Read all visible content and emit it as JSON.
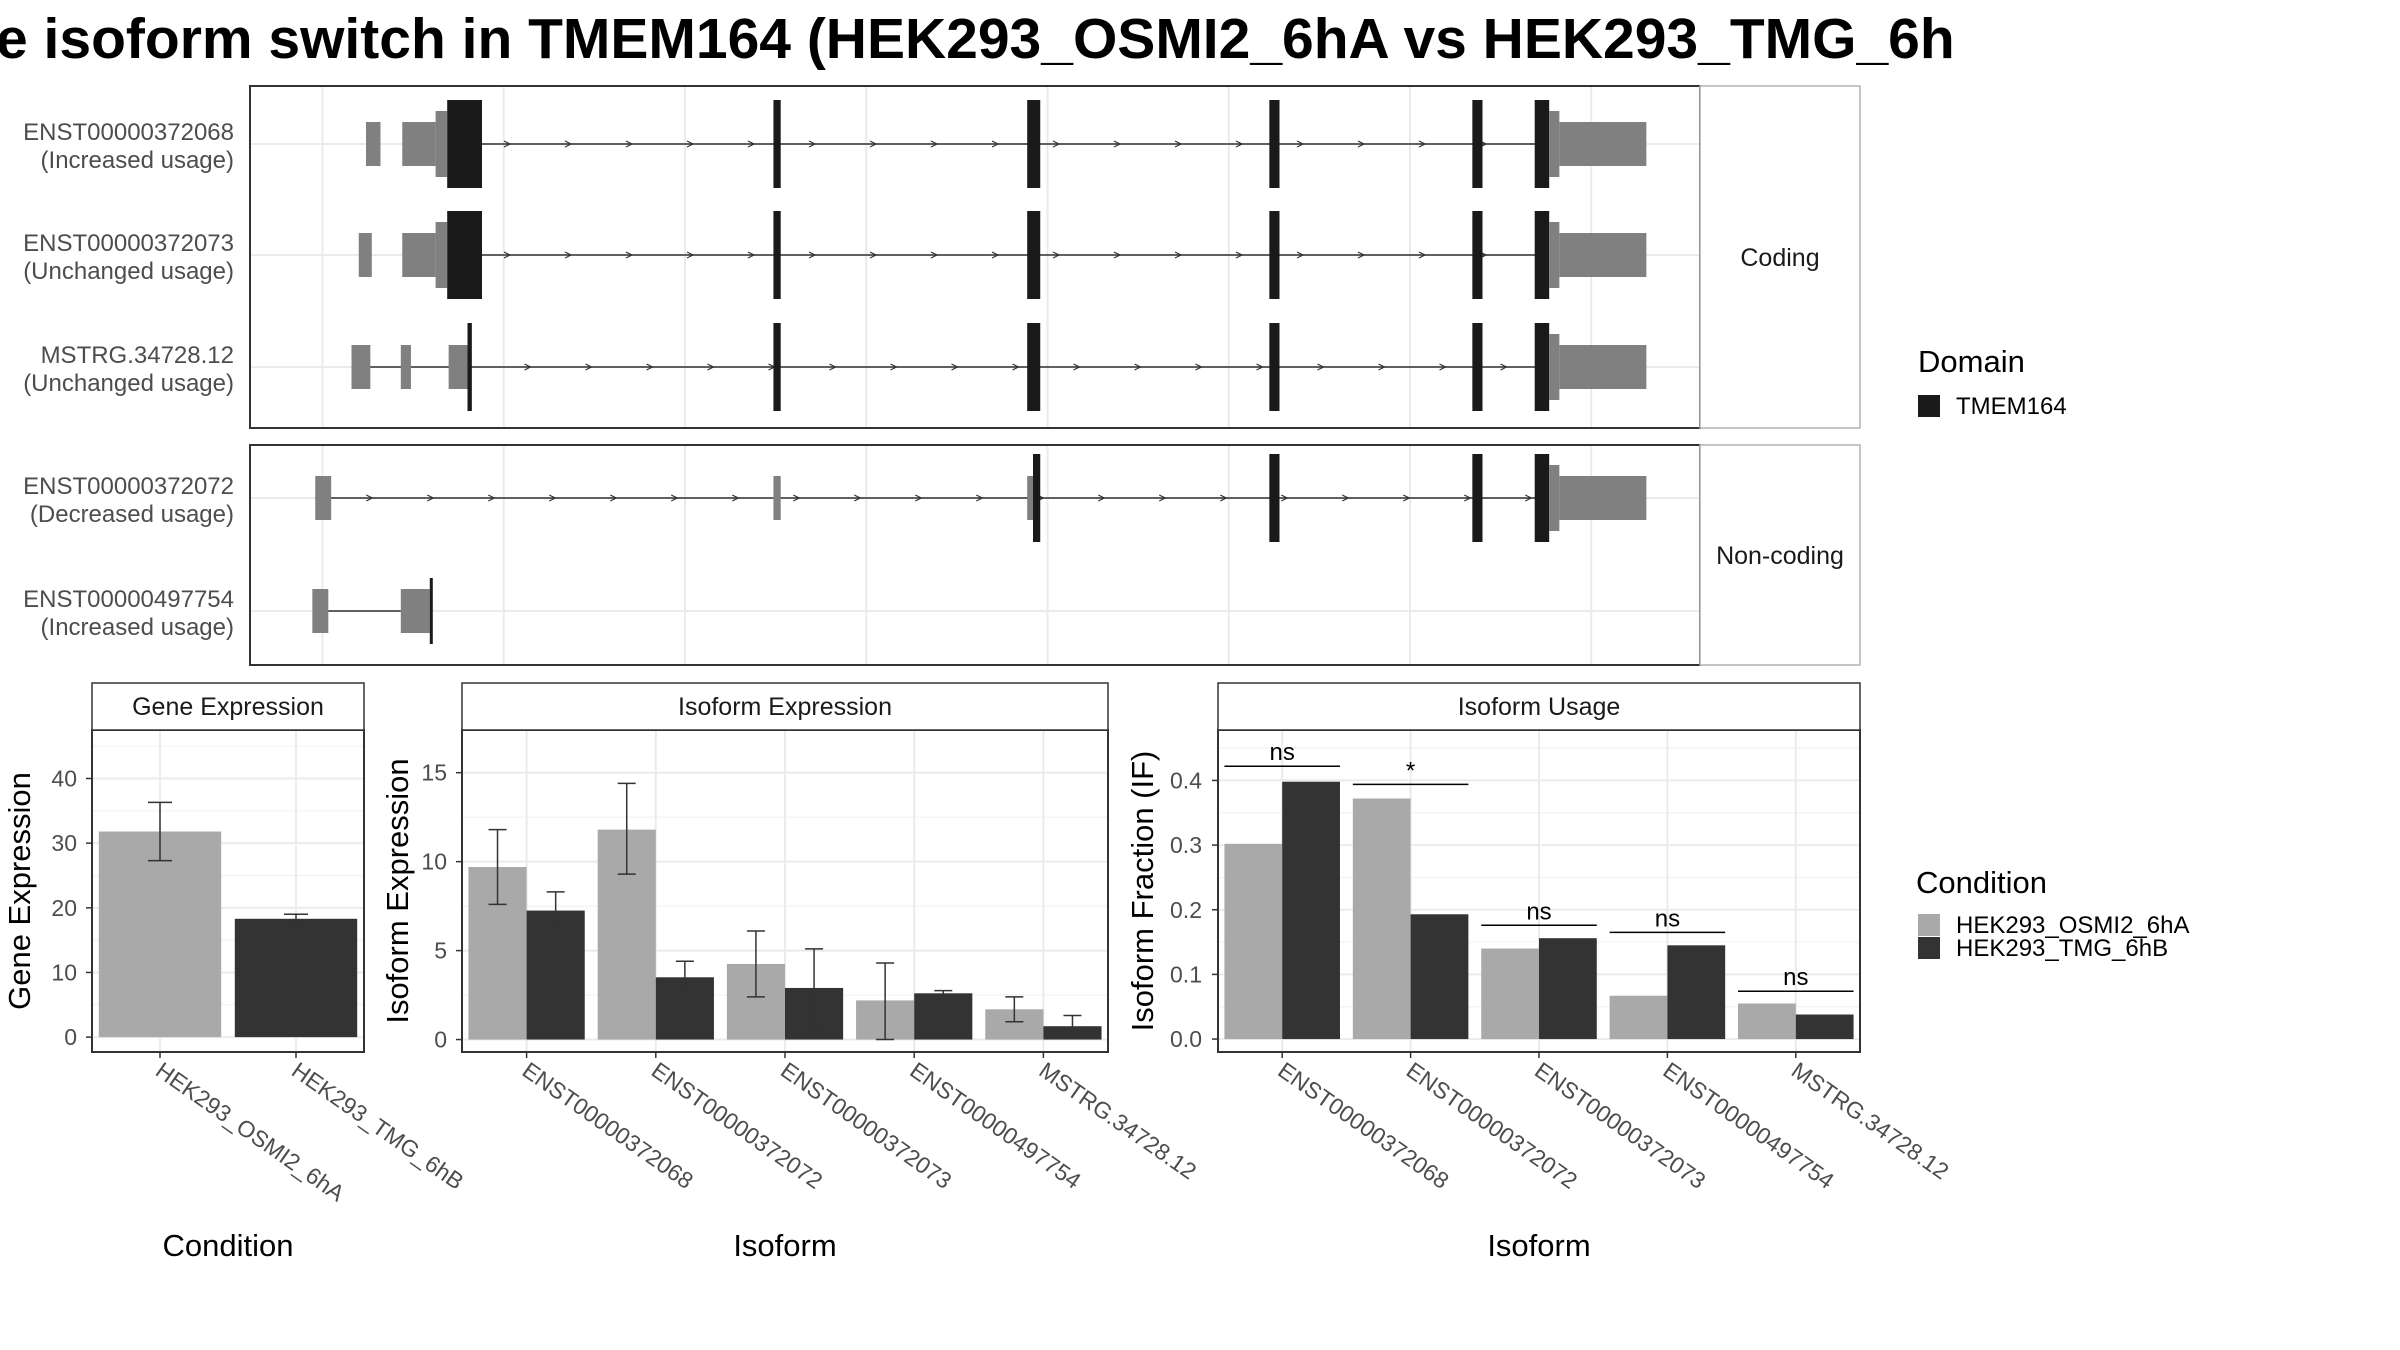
{
  "title": "e isoform switch in TMEM164 (HEK293_OSMI2_6hA vs HEK293_TMG_6h",
  "colors": {
    "cond_a": "#a9a9a9",
    "cond_b": "#333333",
    "utr": "#808080",
    "domain": "#1a1a1a",
    "grid": "#ebebeb",
    "panel_border": "#333333",
    "strip_bg": "#ffffff"
  },
  "structure": {
    "coords": "genomic position in plot units (0-100), left to right",
    "groups": [
      {
        "label": "Coding",
        "transcripts": [
          {
            "name": "ENST00000372068",
            "status": "(Increased usage)",
            "intron": [
              14.0,
              89.0
            ],
            "exons": [
              {
                "s": 8.0,
                "e": 9.0,
                "type": "utr"
              },
              {
                "s": 10.5,
                "e": 12.8,
                "type": "utr"
              },
              {
                "s": 12.8,
                "e": 13.6,
                "type": "utr_thin"
              },
              {
                "s": 13.6,
                "e": 16.0,
                "type": "cds"
              },
              {
                "s": 36.1,
                "e": 36.6,
                "type": "cds"
              },
              {
                "s": 53.6,
                "e": 54.5,
                "type": "cds"
              },
              {
                "s": 70.3,
                "e": 71.0,
                "type": "cds"
              },
              {
                "s": 84.3,
                "e": 85.0,
                "type": "cds"
              },
              {
                "s": 88.6,
                "e": 89.6,
                "type": "cds"
              },
              {
                "s": 89.6,
                "e": 90.3,
                "type": "utr_thin"
              },
              {
                "s": 90.3,
                "e": 96.3,
                "type": "utr"
              }
            ]
          },
          {
            "name": "ENST00000372073",
            "status": "(Unchanged usage)",
            "intron": [
              14.0,
              89.0
            ],
            "exons": [
              {
                "s": 7.5,
                "e": 8.4,
                "type": "utr"
              },
              {
                "s": 10.5,
                "e": 12.8,
                "type": "utr"
              },
              {
                "s": 12.8,
                "e": 13.6,
                "type": "utr_thin"
              },
              {
                "s": 13.6,
                "e": 16.0,
                "type": "cds"
              },
              {
                "s": 36.1,
                "e": 36.6,
                "type": "cds"
              },
              {
                "s": 53.6,
                "e": 54.5,
                "type": "cds"
              },
              {
                "s": 70.3,
                "e": 71.0,
                "type": "cds"
              },
              {
                "s": 84.3,
                "e": 85.0,
                "type": "cds"
              },
              {
                "s": 88.6,
                "e": 89.6,
                "type": "cds"
              },
              {
                "s": 89.6,
                "e": 90.3,
                "type": "utr_thin"
              },
              {
                "s": 90.3,
                "e": 96.3,
                "type": "utr"
              }
            ]
          },
          {
            "name": "MSTRG.34728.12",
            "status": "(Unchanged usage)",
            "intron": [
              7.0,
              89.0
            ],
            "exons": [
              {
                "s": 7.0,
                "e": 8.3,
                "type": "utr"
              },
              {
                "s": 10.4,
                "e": 11.1,
                "type": "utr"
              },
              {
                "s": 13.7,
                "e": 15.0,
                "type": "utr"
              },
              {
                "s": 15.0,
                "e": 15.3,
                "type": "cds"
              },
              {
                "s": 36.1,
                "e": 36.6,
                "type": "cds"
              },
              {
                "s": 53.6,
                "e": 54.5,
                "type": "cds"
              },
              {
                "s": 70.3,
                "e": 71.0,
                "type": "cds"
              },
              {
                "s": 84.3,
                "e": 85.0,
                "type": "cds"
              },
              {
                "s": 88.6,
                "e": 89.6,
                "type": "cds"
              },
              {
                "s": 89.6,
                "e": 90.3,
                "type": "utr_thin"
              },
              {
                "s": 90.3,
                "e": 96.3,
                "type": "utr"
              }
            ]
          }
        ]
      },
      {
        "label": "Non-coding",
        "transcripts": [
          {
            "name": "ENST00000372072",
            "status": "(Decreased usage)",
            "intron": [
              4.5,
              89.0
            ],
            "exons": [
              {
                "s": 4.5,
                "e": 5.6,
                "type": "utr"
              },
              {
                "s": 36.1,
                "e": 36.6,
                "type": "utr"
              },
              {
                "s": 53.6,
                "e": 54.0,
                "type": "utr"
              },
              {
                "s": 54.0,
                "e": 54.5,
                "type": "cds"
              },
              {
                "s": 70.3,
                "e": 71.0,
                "type": "cds"
              },
              {
                "s": 84.3,
                "e": 85.0,
                "type": "cds"
              },
              {
                "s": 88.6,
                "e": 89.6,
                "type": "cds"
              },
              {
                "s": 89.6,
                "e": 90.3,
                "type": "utr_thin"
              },
              {
                "s": 90.3,
                "e": 96.3,
                "type": "utr"
              }
            ]
          },
          {
            "name": "ENST00000497754",
            "status": "(Increased usage)",
            "intron": [
              5.3,
              10.4
            ],
            "exons": [
              {
                "s": 4.3,
                "e": 5.4,
                "type": "utr"
              },
              {
                "s": 10.4,
                "e": 12.4,
                "type": "utr"
              },
              {
                "s": 12.4,
                "e": 12.6,
                "type": "cds_tall"
              }
            ]
          }
        ]
      }
    ]
  },
  "legend_domain": {
    "title": "Domain",
    "items": [
      {
        "label": "TMEM164",
        "color": "#1a1a1a"
      }
    ]
  },
  "legend_condition": {
    "title": "Condition",
    "items": [
      {
        "label": "HEK293_OSMI2_6hA",
        "color": "#a9a9a9"
      },
      {
        "label": "HEK293_TMG_6hB",
        "color": "#333333"
      }
    ]
  },
  "chart_data": [
    {
      "type": "bar",
      "strip": "Gene Expression",
      "xlabel": "Condition",
      "ylabel": "Gene Expression",
      "ylim": [
        -2.3,
        47.5
      ],
      "yticks": [
        0,
        10,
        20,
        30,
        40
      ],
      "categories": [
        "HEK293_OSMI2_6hA",
        "HEK293_TMG_6hB"
      ],
      "values": [
        31.8,
        18.3
      ],
      "errors": [
        [
          27.3,
          36.3
        ],
        [
          17.6,
          19.0
        ]
      ]
    },
    {
      "type": "bar",
      "strip": "Isoform Expression",
      "xlabel": "Isoform",
      "ylabel": "Isoform Expression",
      "ylim": [
        -0.7,
        17.4
      ],
      "yticks": [
        0,
        5,
        10,
        15
      ],
      "categories": [
        "ENST00000372068",
        "ENST00000372072",
        "ENST00000372073",
        "ENST00000497754",
        "MSTRG.34728.12"
      ],
      "series": [
        {
          "name": "HEK293_OSMI2_6hA",
          "values": [
            9.7,
            11.8,
            4.25,
            2.2,
            1.7
          ],
          "errors": [
            [
              7.6,
              11.8
            ],
            [
              9.3,
              14.4
            ],
            [
              2.4,
              6.1
            ],
            [
              0.0,
              4.3
            ],
            [
              1.0,
              2.4
            ]
          ]
        },
        {
          "name": "HEK293_TMG_6hB",
          "values": [
            7.25,
            3.5,
            2.9,
            2.6,
            0.75
          ],
          "errors": [
            [
              6.3,
              8.3
            ],
            [
              2.6,
              4.4
            ],
            [
              0.6,
              5.1
            ],
            [
              2.45,
              2.75
            ],
            [
              0.2,
              1.35
            ]
          ]
        }
      ]
    },
    {
      "type": "bar",
      "strip": "Isoform Usage",
      "xlabel": "Isoform",
      "ylabel": "Isoform Fraction (IF)",
      "ylim": [
        -0.02,
        0.478
      ],
      "yticks": [
        0.0,
        0.1,
        0.2,
        0.3,
        0.4
      ],
      "ytick_labels": [
        "0.0",
        "0.1",
        "0.2",
        "0.3",
        "0.4"
      ],
      "categories": [
        "ENST00000372068",
        "ENST00000372072",
        "ENST00000372073",
        "ENST00000497754",
        "MSTRG.34728.12"
      ],
      "series": [
        {
          "name": "HEK293_OSMI2_6hA",
          "values": [
            0.302,
            0.372,
            0.14,
            0.067,
            0.055
          ]
        },
        {
          "name": "HEK293_TMG_6hB",
          "values": [
            0.398,
            0.193,
            0.156,
            0.145,
            0.038
          ]
        }
      ],
      "significance": [
        {
          "label": "ns",
          "y": 0.422
        },
        {
          "label": "*",
          "y": 0.394
        },
        {
          "label": "ns",
          "y": 0.176
        },
        {
          "label": "ns",
          "y": 0.165
        },
        {
          "label": "ns",
          "y": 0.074
        }
      ]
    }
  ]
}
